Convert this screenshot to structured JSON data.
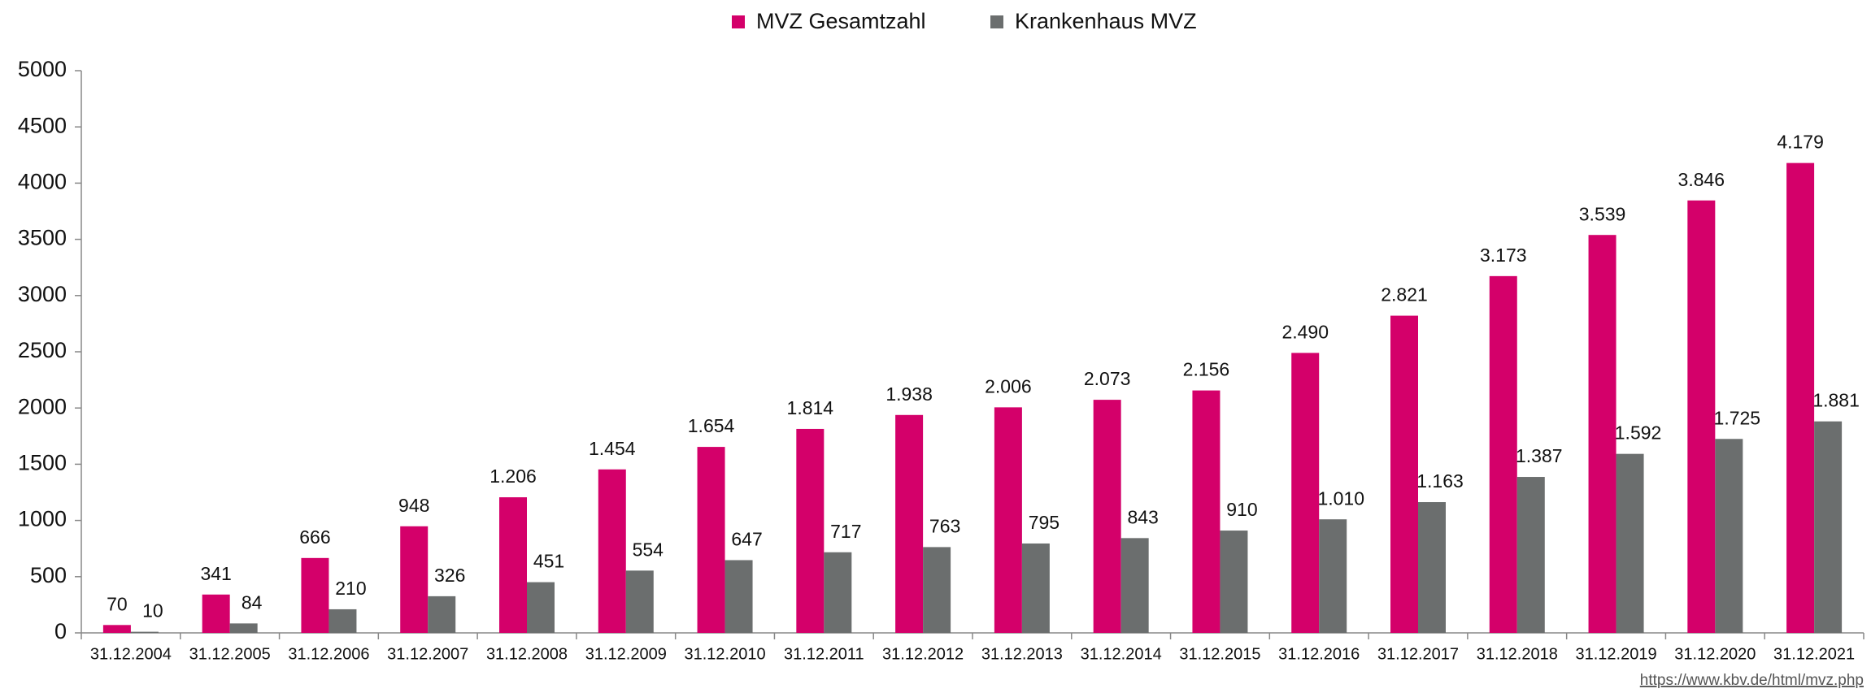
{
  "chart_data": {
    "type": "bar",
    "categories": [
      "31.12.2004",
      "31.12.2005",
      "31.12.2006",
      "31.12.2007",
      "31.12.2008",
      "31.12.2009",
      "31.12.2010",
      "31.12.2011",
      "31.12.2012",
      "31.12.2013",
      "31.12.2014",
      "31.12.2015",
      "31.12.2016",
      "31.12.2017",
      "31.12.2018",
      "31.12.2019",
      "31.12.2020",
      "31.12.2021"
    ],
    "series": [
      {
        "name": "MVZ Gesamtzahl",
        "color": "#d4006a",
        "values": [
          70,
          341,
          666,
          948,
          1206,
          1454,
          1654,
          1814,
          1938,
          2006,
          2073,
          2156,
          2490,
          2821,
          3173,
          3539,
          3846,
          4179
        ],
        "value_labels": [
          "70",
          "341",
          "666",
          "948",
          "1.206",
          "1.454",
          "1.654",
          "1.814",
          "1.938",
          "2.006",
          "2.073",
          "2.156",
          "2.490",
          "2.821",
          "3.173",
          "3.539",
          "3.846",
          "4.179"
        ]
      },
      {
        "name": "Krankenhaus MVZ",
        "color": "#6b6e6e",
        "values": [
          10,
          84,
          210,
          326,
          451,
          554,
          647,
          717,
          763,
          795,
          843,
          910,
          1010,
          1163,
          1387,
          1592,
          1725,
          1881
        ],
        "value_labels": [
          "10",
          "84",
          "210",
          "326",
          "451",
          "554",
          "647",
          "717",
          "763",
          "795",
          "843",
          "910",
          "1.010",
          "1.163",
          "1.387",
          "1.592",
          "1.725",
          "1.881"
        ]
      }
    ],
    "ylim": [
      0,
      5000
    ],
    "yticks": [
      0,
      500,
      1000,
      1500,
      2000,
      2500,
      3000,
      3500,
      4000,
      4500,
      5000
    ],
    "legend": "top",
    "source": "https://www.kbv.de/html/mvz.php"
  }
}
